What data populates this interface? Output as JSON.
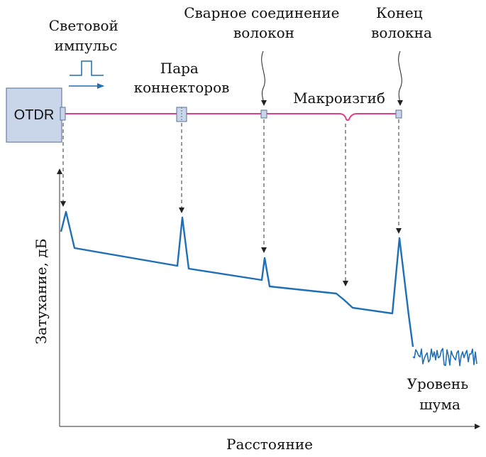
{
  "labels": {
    "light_pulse": [
      "Световой",
      "импульс"
    ],
    "connector_pair": [
      "Пара",
      "коннекторов"
    ],
    "fusion_splice": [
      "Сварное соединение",
      "волокон"
    ],
    "fiber_end": [
      "Конец",
      "волокна"
    ],
    "macrobend": "Макроизгиб",
    "noise_level": [
      "Уровень",
      "шума"
    ],
    "otdr": "OTDR",
    "y_axis": "Затухание, дБ",
    "x_axis": "Расстояние"
  },
  "colors": {
    "fiber": "#e0408a",
    "trace": "#1f6fb5",
    "otdr_box_fill": "#c9d6ea",
    "otdr_box_stroke": "#6b7fa8",
    "pulse": "#1f6fb5",
    "axis": "#333333"
  }
}
